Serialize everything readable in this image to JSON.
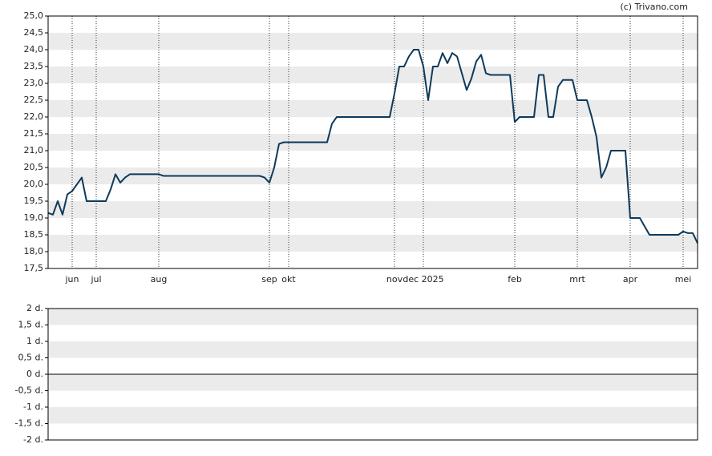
{
  "chart_data": [
    {
      "type": "line",
      "source": "(c) Trivano.com",
      "color": "#0d3a5c",
      "bands": true,
      "categories": [
        null,
        null,
        null,
        null,
        null,
        "jun",
        null,
        null,
        null,
        null,
        "jul",
        null,
        null,
        null,
        null,
        null,
        null,
        null,
        null,
        null,
        null,
        null,
        null,
        "aug",
        null,
        null,
        null,
        null,
        null,
        null,
        null,
        null,
        null,
        null,
        null,
        null,
        null,
        null,
        null,
        null,
        null,
        null,
        null,
        null,
        null,
        null,
        "sep",
        null,
        null,
        null,
        "okt",
        null,
        null,
        null,
        null,
        null,
        null,
        null,
        null,
        null,
        null,
        null,
        null,
        null,
        null,
        null,
        null,
        null,
        null,
        null,
        null,
        null,
        "nov",
        null,
        null,
        null,
        null,
        null,
        "dec 2025",
        null,
        null,
        null,
        null,
        null,
        null,
        null,
        null,
        null,
        null,
        null,
        null,
        null,
        null,
        null,
        null,
        null,
        null,
        "feb",
        null,
        null,
        null,
        null,
        null,
        null,
        null,
        null,
        null,
        null,
        null,
        null,
        "mrt",
        null,
        null,
        null,
        null,
        null,
        null,
        null,
        null,
        null,
        null,
        "apr",
        null,
        null,
        null,
        null,
        null,
        null,
        null,
        null,
        null,
        null,
        "mei",
        null,
        null,
        null
      ],
      "values": [
        19.15,
        19.1,
        19.5,
        19.1,
        19.7,
        19.8,
        20.0,
        20.2,
        19.5,
        19.5,
        19.5,
        19.5,
        19.5,
        19.85,
        20.3,
        20.05,
        20.2,
        20.3,
        20.3,
        20.3,
        20.3,
        20.3,
        20.3,
        20.3,
        20.25,
        20.25,
        20.25,
        20.25,
        20.25,
        20.25,
        20.25,
        20.25,
        20.25,
        20.25,
        20.25,
        20.25,
        20.25,
        20.25,
        20.25,
        20.25,
        20.25,
        20.25,
        20.25,
        20.25,
        20.25,
        20.2,
        20.05,
        20.5,
        21.2,
        21.25,
        21.25,
        21.25,
        21.25,
        21.25,
        21.25,
        21.25,
        21.25,
        21.25,
        21.25,
        21.8,
        22.0,
        22.0,
        22.0,
        22.0,
        22.0,
        22.0,
        22.0,
        22.0,
        22.0,
        22.0,
        22.0,
        22.0,
        22.7,
        23.5,
        23.5,
        23.8,
        24.0,
        24.0,
        23.5,
        22.5,
        23.5,
        23.5,
        23.9,
        23.6,
        23.9,
        23.8,
        23.3,
        22.8,
        23.15,
        23.65,
        23.85,
        23.3,
        23.25,
        23.25,
        23.25,
        23.25,
        23.25,
        21.85,
        22.0,
        22.0,
        22.0,
        22.0,
        23.25,
        23.25,
        22.0,
        22.0,
        22.9,
        23.1,
        23.1,
        23.1,
        22.5,
        22.5,
        22.5,
        22.0,
        21.4,
        20.2,
        20.5,
        21.0,
        21.0,
        21.0,
        21.0,
        19.0,
        19.0,
        19.0,
        18.75,
        18.5,
        18.5,
        18.5,
        18.5,
        18.5,
        18.5,
        18.5,
        18.6,
        18.55,
        18.55,
        18.25
      ],
      "ylim": [
        17.5,
        25
      ],
      "yticks": [
        {
          "value": 17.5,
          "label": "17,5"
        },
        {
          "value": 18,
          "label": "18,0"
        },
        {
          "value": 18.5,
          "label": "18,5"
        },
        {
          "value": 19,
          "label": "19,0"
        },
        {
          "value": 19.5,
          "label": "19,5"
        },
        {
          "value": 20,
          "label": "20,0"
        },
        {
          "value": 20.5,
          "label": "20,5"
        },
        {
          "value": 21,
          "label": "21,0"
        },
        {
          "value": 21.5,
          "label": "21,5"
        },
        {
          "value": 22,
          "label": "22,0"
        },
        {
          "value": 22.5,
          "label": "22,5"
        },
        {
          "value": 23,
          "label": "23,0"
        },
        {
          "value": 23.5,
          "label": "23,5"
        },
        {
          "value": 24,
          "label": "24,0"
        },
        {
          "value": 24.5,
          "label": "24,5"
        },
        {
          "value": 25,
          "label": "25,0"
        }
      ]
    },
    {
      "type": "line",
      "bands": true,
      "zero_line": true,
      "ylim": [
        -2,
        2
      ],
      "yticks": [
        {
          "value": -2,
          "label": "-2 d."
        },
        {
          "value": -1.5,
          "label": "-1,5 d."
        },
        {
          "value": -1,
          "label": "-1 d."
        },
        {
          "value": -0.5,
          "label": "-0,5 d."
        },
        {
          "value": 0,
          "label": "0 d."
        },
        {
          "value": 0.5,
          "label": "0,5 d."
        },
        {
          "value": 1,
          "label": "1 d."
        },
        {
          "value": 1.5,
          "label": "1,5 d."
        },
        {
          "value": 2,
          "label": "2 d."
        }
      ]
    }
  ]
}
